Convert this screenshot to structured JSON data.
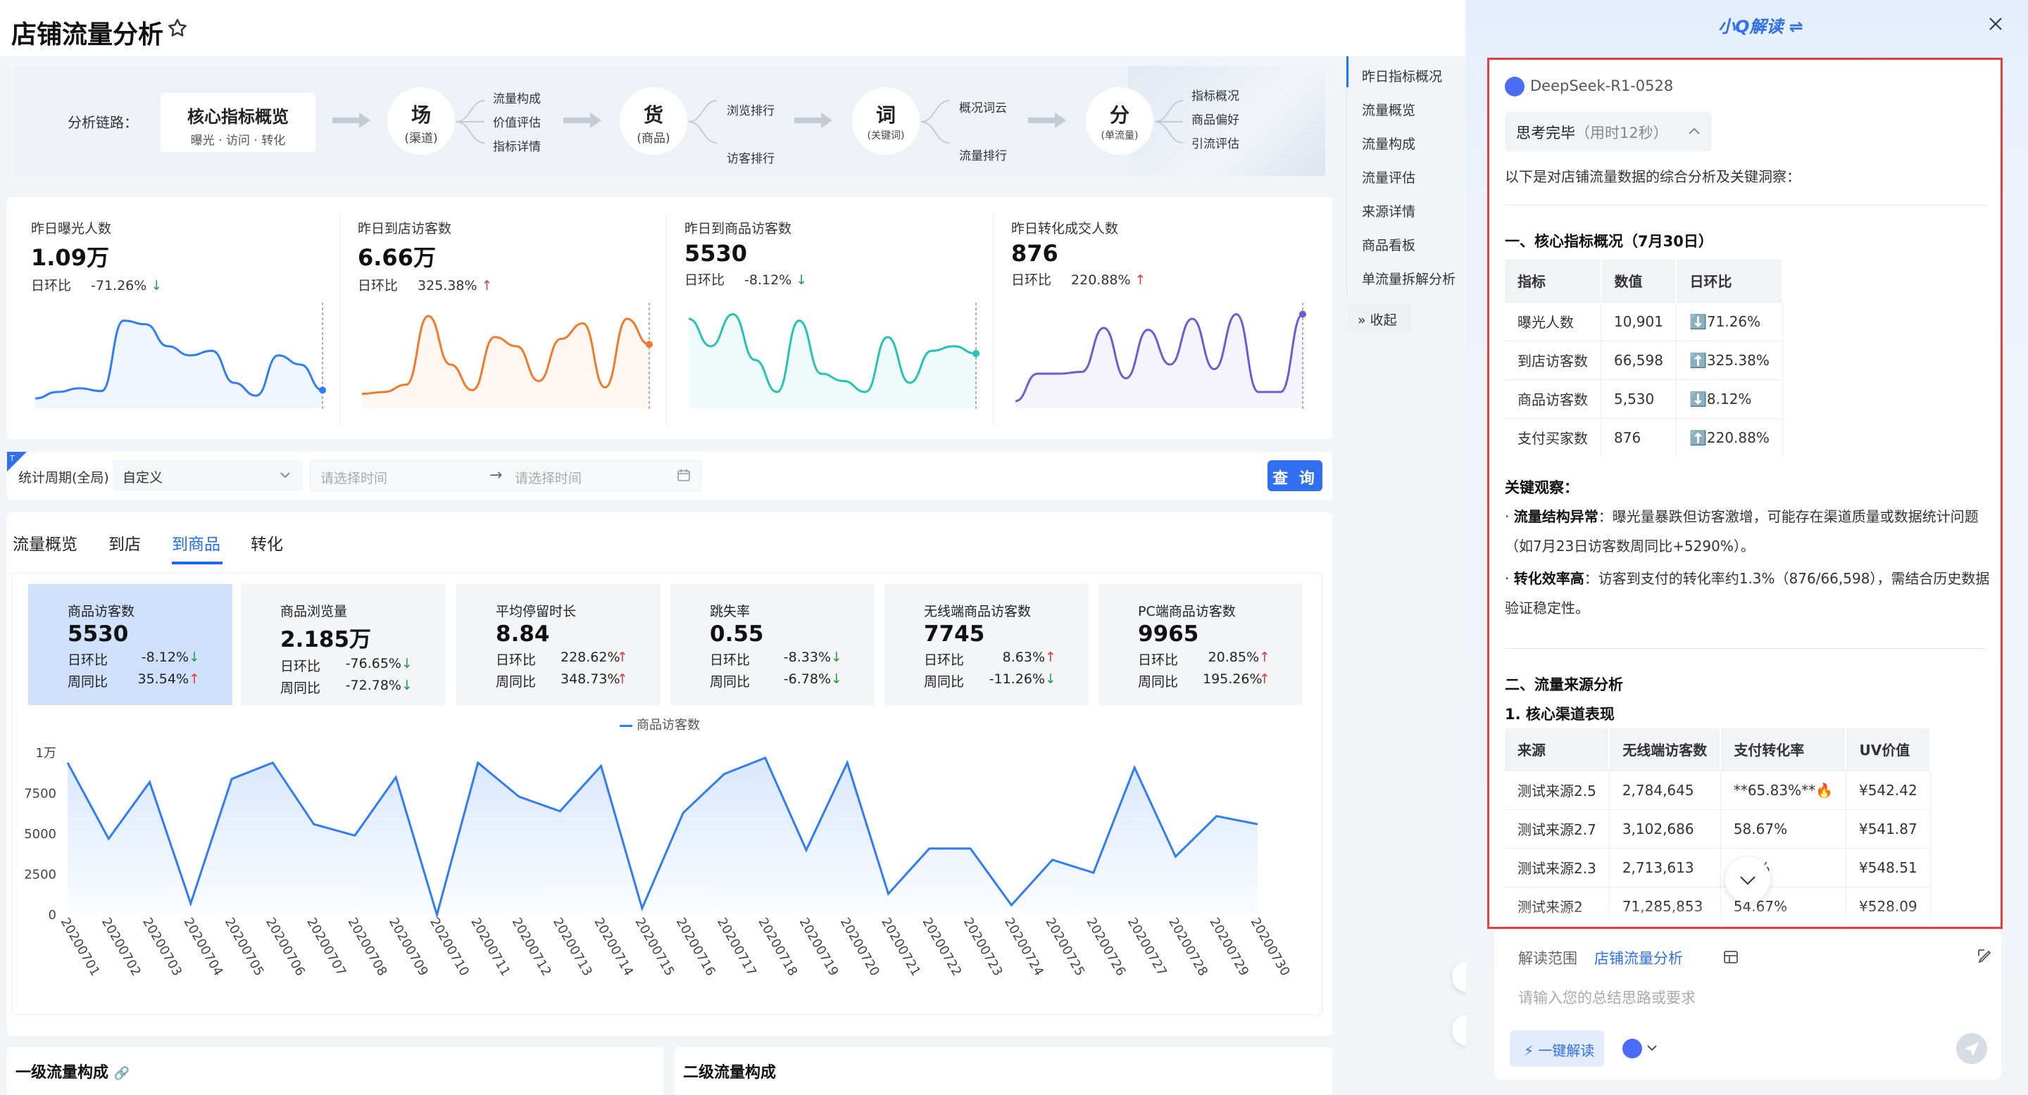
{
  "page": {
    "title": "店铺流量分析"
  },
  "chain": {
    "label": "分析链路：",
    "core": {
      "title": "核心指标概览",
      "sub": "曝光 · 访问 · 转化"
    },
    "nodes": [
      {
        "big": "场",
        "small": "(渠道)",
        "links": [
          "流量构成",
          "价值评估",
          "指标详情"
        ]
      },
      {
        "big": "货",
        "small": "(商品)",
        "links": [
          "浏览排行",
          "访客排行"
        ]
      },
      {
        "big": "词",
        "small": "(关键词)",
        "links": [
          "概况词云",
          "流量排行"
        ]
      },
      {
        "big": "分",
        "small": "(单流量)",
        "links": [
          "指标概况",
          "商品偏好",
          "引流评估"
        ]
      }
    ]
  },
  "side_index": {
    "items": [
      "昨日指标概况",
      "流量概览",
      "流量构成",
      "流量评估",
      "来源详情",
      "商品看板",
      "单流量拆解分析"
    ],
    "collapse": "收起"
  },
  "metrics": [
    {
      "label": "昨日曝光人数",
      "value": "1.09万",
      "cmp_label": "日环比",
      "cmp": "-71.26%",
      "dir": "down",
      "color": "#2e7cf6",
      "series": [
        3,
        10,
        14,
        11,
        88,
        84,
        60,
        50,
        55,
        20,
        6,
        50,
        40,
        12
      ]
    },
    {
      "label": "昨日到店访客数",
      "value": "6.66万",
      "cmp_label": "日环比",
      "cmp": "325.38%",
      "dir": "up",
      "color": "#f07a2a",
      "series": [
        8,
        10,
        18,
        93,
        40,
        12,
        70,
        60,
        22,
        68,
        85,
        15,
        90,
        62
      ]
    },
    {
      "label": "昨日到商品访客数",
      "value": "5530",
      "cmp_label": "日环比",
      "cmp": "-8.12%",
      "dir": "down",
      "color": "#22c4b5",
      "series": [
        90,
        60,
        95,
        45,
        10,
        88,
        30,
        22,
        10,
        70,
        20,
        55,
        60,
        52
      ]
    },
    {
      "label": "昨日转化成交人数",
      "value": "876",
      "cmp_label": "日环比",
      "cmp": "220.88%",
      "dir": "up",
      "color": "#6c5bd8",
      "series": [
        0,
        30,
        30,
        32,
        80,
        25,
        78,
        40,
        90,
        35,
        95,
        10,
        10,
        95
      ]
    }
  ],
  "filter": {
    "label": "统计周期(全局)",
    "select": "自定义",
    "start_placeholder": "请选择时间",
    "end_placeholder": "请选择时间",
    "query": "查 询"
  },
  "tabs": [
    "流量概览",
    "到店",
    "到商品",
    "转化"
  ],
  "kpis": [
    {
      "label": "商品访客数",
      "value": "5530",
      "d_label": "日环比",
      "d": "-8.12%",
      "d_dir": "down",
      "w_label": "周同比",
      "w": "35.54%",
      "w_dir": "up"
    },
    {
      "label": "商品浏览量",
      "value": "2.185万",
      "d_label": "日环比",
      "d": "-76.65%",
      "d_dir": "down",
      "w_label": "周同比",
      "w": "-72.78%",
      "w_dir": "down"
    },
    {
      "label": "平均停留时长",
      "value": "8.84",
      "d_label": "日环比",
      "d": "228.62%",
      "d_dir": "up",
      "w_label": "周同比",
      "w": "348.73%",
      "w_dir": "up"
    },
    {
      "label": "跳失率",
      "value": "0.55",
      "d_label": "日环比",
      "d": "-8.33%",
      "d_dir": "down",
      "w_label": "周同比",
      "w": "-6.78%",
      "w_dir": "down"
    },
    {
      "label": "无线端商品访客数",
      "value": "7745",
      "d_label": "日环比",
      "d": "8.63%",
      "d_dir": "up",
      "w_label": "周同比",
      "w": "-11.26%",
      "w_dir": "down"
    },
    {
      "label": "PC端商品访客数",
      "value": "9965",
      "d_label": "日环比",
      "d": "20.85%",
      "d_dir": "up",
      "w_label": "周同比",
      "w": "195.26%",
      "w_dir": "up"
    }
  ],
  "chart_data": {
    "type": "area",
    "legend": "商品访客数",
    "ylim": [
      0,
      10000
    ],
    "yticks": [
      "0",
      "2500",
      "5000",
      "7500",
      "1万"
    ],
    "ytick_values": [
      0,
      2500,
      5000,
      7500,
      10000
    ],
    "categories": [
      "20200701",
      "20200702",
      "20200703",
      "20200704",
      "20200705",
      "20200706",
      "20200707",
      "20200708",
      "20200709",
      "20200710",
      "20200711",
      "20200712",
      "20200713",
      "20200714",
      "20200715",
      "20200716",
      "20200717",
      "20200718",
      "20200719",
      "20200720",
      "20200721",
      "20200722",
      "20200723",
      "20200724",
      "20200725",
      "20200726",
      "20200727",
      "20200728",
      "20200729",
      "20200730"
    ],
    "series": [
      {
        "name": "商品访客数",
        "values": [
          9400,
          4700,
          8200,
          700,
          8400,
          9400,
          5600,
          4900,
          8500,
          0,
          9400,
          7300,
          6400,
          9200,
          400,
          6300,
          8700,
          9700,
          4000,
          9400,
          1300,
          4100,
          4100,
          600,
          3400,
          2600,
          9100,
          3600,
          6100,
          5600
        ]
      }
    ]
  },
  "bottom": {
    "left_title": "一级流量构成",
    "right_title": "二级流量构成"
  },
  "assistant": {
    "title": "小Q解读",
    "model": "DeepSeek-R1-0528",
    "think": "思考完毕",
    "think_time": "（用时12秒）",
    "intro": "以下是对店铺流量数据的综合分析及关键洞察：",
    "sec1": "一、核心指标概况（7月30日）",
    "table1": {
      "headers": [
        "指标",
        "数值",
        "日环比"
      ],
      "rows": [
        [
          "曝光人数",
          "10,901",
          "⬇️71.26%"
        ],
        [
          "到店访客数",
          "66,598",
          "⬆️325.38%"
        ],
        [
          "商品访客数",
          "5,530",
          "⬇️8.12%"
        ],
        [
          "支付买家数",
          "876",
          "⬆️220.88%"
        ]
      ]
    },
    "obs_title": "关键观察：",
    "obs": [
      {
        "bold": "流量结构异常",
        "text": "：曝光量暴跌但访客激增，可能存在渠道质量或数据统计问题（如7月23日访客数周同比+5290%）。"
      },
      {
        "bold": "转化效率高",
        "text": "：访客到支付的转化率约1.3%（876/66,598），需结合历史数据验证稳定性。"
      }
    ],
    "sec2": "二、流量来源分析",
    "sec2_1": "1. 核心渠道表现",
    "table2": {
      "headers": [
        "来源",
        "无线端访客数",
        "支付转化率",
        "UV价值"
      ],
      "rows": [
        [
          "测试来源2.5",
          "2,784,645",
          "**65.83%**🔥",
          "¥542.42"
        ],
        [
          "测试来源2.7",
          "3,102,686",
          "58.67%",
          "¥541.87"
        ],
        [
          "测试来源2.3",
          "2,713,613",
          "…9%",
          "¥548.51"
        ],
        [
          "测试来源2",
          "71,285,853",
          "54.67%",
          "¥528.09"
        ]
      ]
    },
    "scope_label": "解读范围",
    "scope_value": "店铺流量分析",
    "input_placeholder": "请输入您的总结思路或要求",
    "oneclick": "一键解读"
  }
}
